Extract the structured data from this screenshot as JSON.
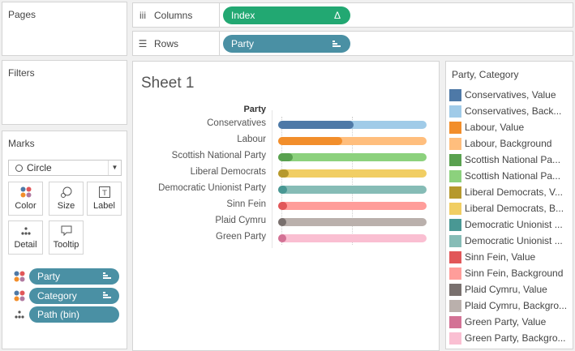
{
  "panes": {
    "pages_title": "Pages",
    "filters_title": "Filters",
    "marks_title": "Marks"
  },
  "shelves": {
    "columns_label": "Columns",
    "rows_label": "Rows",
    "columns_pill": "Index",
    "columns_pill_suffix": "Δ",
    "rows_pill": "Party"
  },
  "marks": {
    "mark_type": "Circle",
    "buttons": {
      "color": "Color",
      "size": "Size",
      "label": "Label",
      "detail": "Detail",
      "tooltip": "Tooltip"
    },
    "encodings": [
      "Party",
      "Category",
      "Path (bin)"
    ]
  },
  "sheet": {
    "title": "Sheet 1",
    "row_header": "Party"
  },
  "chart_data": {
    "type": "bar",
    "categories": [
      "Conservatives",
      "Labour",
      "Scottish National Party",
      "Liberal Democrats",
      "Democratic Unionist Party",
      "Sinn Fein",
      "Plaid Cymru",
      "Green Party"
    ],
    "series": [
      {
        "name": "Value",
        "values": [
          0.51,
          0.43,
          0.1,
          0.07,
          0.06,
          0.06,
          0.05,
          0.04
        ]
      },
      {
        "name": "Background",
        "values": [
          1,
          1,
          1,
          1,
          1,
          1,
          1,
          1
        ]
      }
    ],
    "colors": {
      "value": [
        "#4e79a7",
        "#f28e2b",
        "#59a14f",
        "#b6992d",
        "#499894",
        "#e15759",
        "#79706e",
        "#d37295"
      ],
      "background": [
        "#a0cbe8",
        "#ffbe7d",
        "#8cd17d",
        "#f1ce63",
        "#86bcb6",
        "#ff9d9a",
        "#bab0ac",
        "#fabfd2"
      ]
    },
    "xlabel": "",
    "ylabel": "Party"
  },
  "legend": {
    "title": "Party, Category",
    "items": [
      {
        "label": "Conservatives, Value",
        "color": "#4e79a7"
      },
      {
        "label": "Conservatives, Back...",
        "color": "#a0cbe8"
      },
      {
        "label": "Labour, Value",
        "color": "#f28e2b"
      },
      {
        "label": "Labour, Background",
        "color": "#ffbe7d"
      },
      {
        "label": "Scottish National Pa...",
        "color": "#59a14f"
      },
      {
        "label": "Scottish National Pa...",
        "color": "#8cd17d"
      },
      {
        "label": "Liberal Democrats, V...",
        "color": "#b6992d"
      },
      {
        "label": "Liberal Democrats, B...",
        "color": "#f1ce63"
      },
      {
        "label": "Democratic Unionist ...",
        "color": "#499894"
      },
      {
        "label": "Democratic Unionist ...",
        "color": "#86bcb6"
      },
      {
        "label": "Sinn Fein, Value",
        "color": "#e15759"
      },
      {
        "label": "Sinn Fein, Background",
        "color": "#ff9d9a"
      },
      {
        "label": "Plaid Cymru, Value",
        "color": "#79706e"
      },
      {
        "label": "Plaid Cymru, Backgro...",
        "color": "#bab0ac"
      },
      {
        "label": "Green Party, Value",
        "color": "#d37295"
      },
      {
        "label": "Green Party, Backgro...",
        "color": "#fabfd2"
      }
    ]
  }
}
